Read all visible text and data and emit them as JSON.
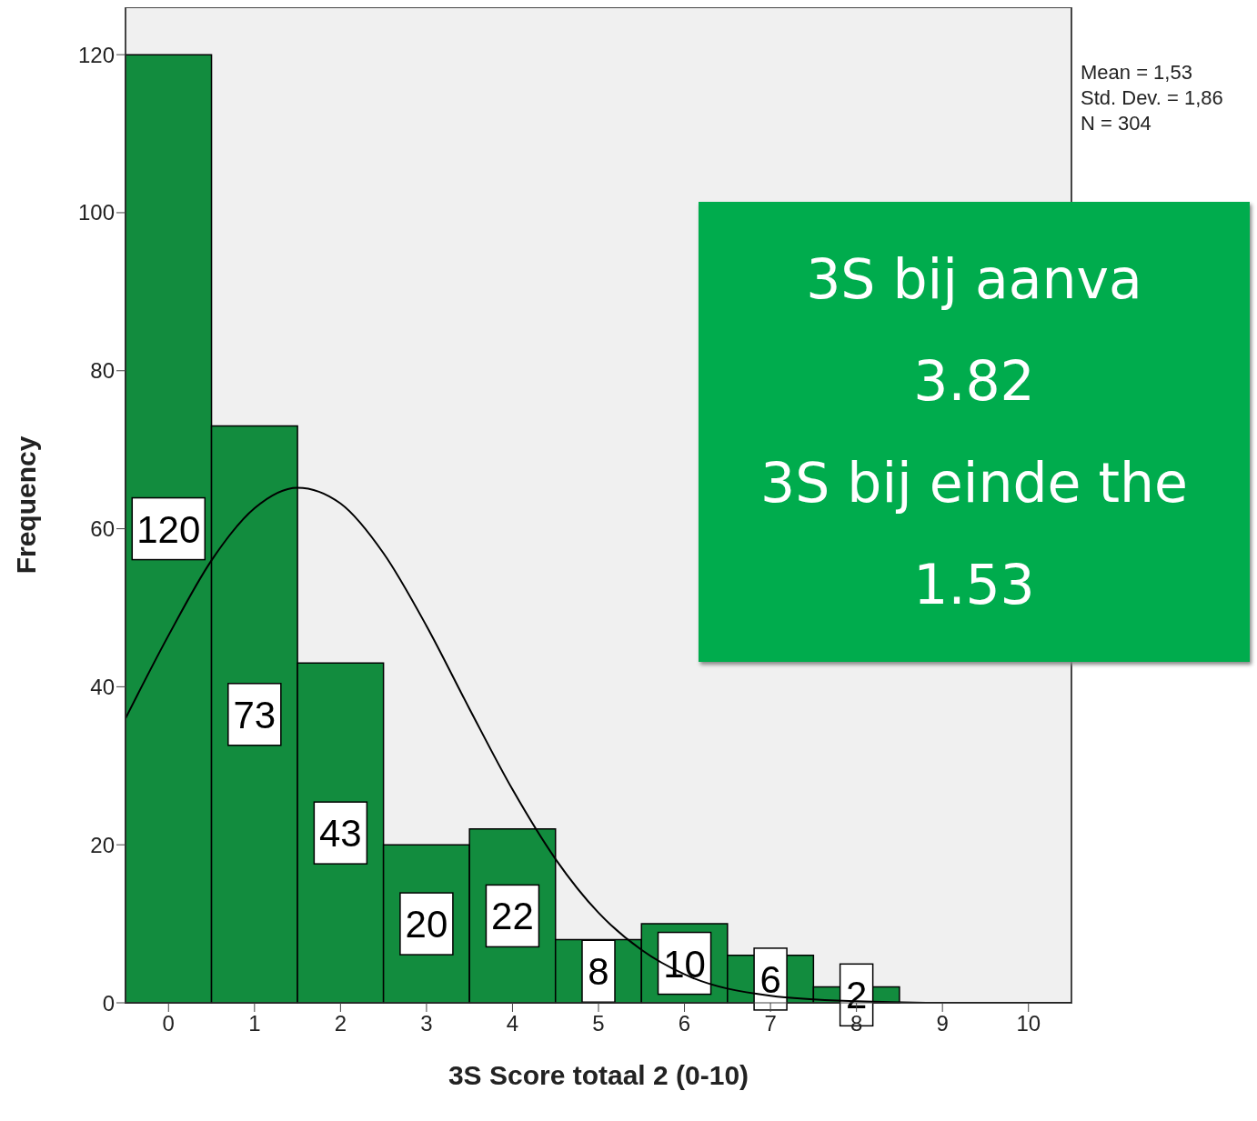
{
  "chart_data": {
    "type": "histogram",
    "xlabel": "3S Score totaal 2 (0-10)",
    "ylabel": "Frequency",
    "bins": [
      -0.5,
      0.5,
      1.5,
      2.5,
      3.5,
      4.5,
      5.5,
      6.5,
      7.5,
      8.5,
      9.5,
      10.5
    ],
    "values": [
      120,
      73,
      43,
      20,
      22,
      8,
      10,
      6,
      2,
      0,
      0
    ],
    "value_labels": [
      "120",
      "73",
      "43",
      "20",
      "22",
      "8",
      "10",
      "6",
      "2",
      null,
      null
    ],
    "color": "#128c3e",
    "series": [
      {
        "type": "line",
        "color": "#000000",
        "x": [
          -0.5,
          0,
          0.5,
          1,
          1.5,
          2,
          2.5,
          3,
          3.5,
          4,
          4.5,
          5,
          5.5,
          6,
          7,
          8,
          9,
          10,
          10.5
        ],
        "values": [
          36,
          46.5,
          56,
          62.6,
          65.2,
          63.2,
          56.9,
          47.7,
          37.2,
          27,
          18.2,
          11.4,
          6.7,
          3.6,
          0.9,
          0.2,
          0,
          0,
          0
        ]
      }
    ],
    "xlim": [
      -0.5,
      10.5
    ],
    "xticks": [
      0,
      1,
      2,
      3,
      4,
      5,
      6,
      7,
      8,
      9,
      10
    ],
    "ylim": [
      0,
      126
    ],
    "yticks": [
      0,
      20,
      40,
      60,
      80,
      100,
      120
    ],
    "annotations": [
      "Mean = 1,53",
      "Std. Dev. = 1,86",
      "N = 304",
      "3S bij aanva",
      "3.82",
      "3S bij einde the",
      "1.53"
    ]
  }
}
